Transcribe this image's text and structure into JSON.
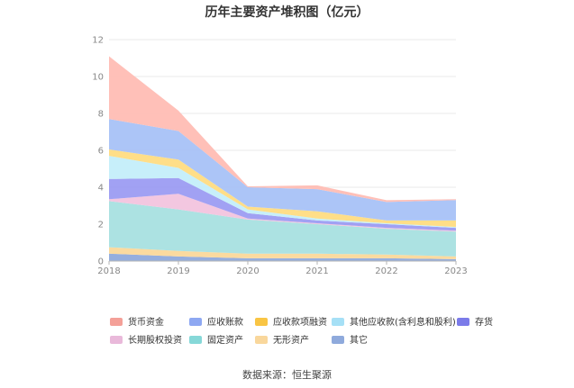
{
  "title": "历年主要资产堆积图（亿元）",
  "source": "数据来源：恒生聚源",
  "chart_data": {
    "type": "area",
    "stacked": true,
    "title": "历年主要资产堆积图（亿元）",
    "xlabel": "",
    "ylabel": "",
    "x": [
      "2018",
      "2019",
      "2020",
      "2021",
      "2022",
      "2023"
    ],
    "ylim": [
      0,
      12
    ],
    "yticks": [
      0,
      2,
      4,
      6,
      8,
      10,
      12
    ],
    "grid": true,
    "legend_position": "bottom",
    "series": [
      {
        "name": "其它",
        "color": "#8FAADC",
        "values": [
          0.4,
          0.25,
          0.15,
          0.15,
          0.15,
          0.1
        ]
      },
      {
        "name": "无形资产",
        "color": "#FBD89A",
        "values": [
          0.35,
          0.3,
          0.25,
          0.25,
          0.2,
          0.15
        ]
      },
      {
        "name": "固定资产",
        "color": "#A8E0E0",
        "values": [
          2.5,
          2.25,
          1.85,
          1.6,
          1.4,
          1.35
        ]
      },
      {
        "name": "长期股权投资",
        "color": "#F2C4DE",
        "values": [
          0.1,
          0.85,
          0.05,
          0.05,
          0.05,
          0.05
        ]
      },
      {
        "name": "存货",
        "color": "#9C9CF2",
        "values": [
          1.1,
          0.85,
          0.3,
          0.15,
          0.2,
          0.15
        ]
      },
      {
        "name": "其他应收款(含利息和股利)",
        "color": "#C4EEFA",
        "values": [
          1.25,
          0.55,
          0.2,
          0.1,
          0.05,
          0.05
        ]
      },
      {
        "name": "应收款项融资",
        "color": "#FFDC82",
        "values": [
          0.35,
          0.45,
          0.15,
          0.4,
          0.15,
          0.35
        ]
      },
      {
        "name": "应收账款",
        "color": "#A8C2F7",
        "values": [
          1.65,
          1.55,
          1.05,
          1.2,
          1.0,
          1.1
        ]
      },
      {
        "name": "货币资金",
        "color": "#FFBDB4",
        "values": [
          3.4,
          1.1,
          0.05,
          0.2,
          0.1,
          0.05
        ]
      }
    ]
  },
  "legend": [
    {
      "label": "货币资金",
      "color": "#F4A098"
    },
    {
      "label": "应收账款",
      "color": "#8EA8F2"
    },
    {
      "label": "应收款项融资",
      "color": "#F9C544"
    },
    {
      "label": "其他应收款(含利息和股利)",
      "color": "#A6E0F6"
    },
    {
      "label": "存货",
      "color": "#7B7BE9"
    },
    {
      "label": "长期股权投资",
      "color": "#E9B9DA"
    },
    {
      "label": "固定资产",
      "color": "#86D8D8"
    },
    {
      "label": "无形资产",
      "color": "#F9D79C"
    },
    {
      "label": "其它",
      "color": "#8FAADC"
    }
  ]
}
